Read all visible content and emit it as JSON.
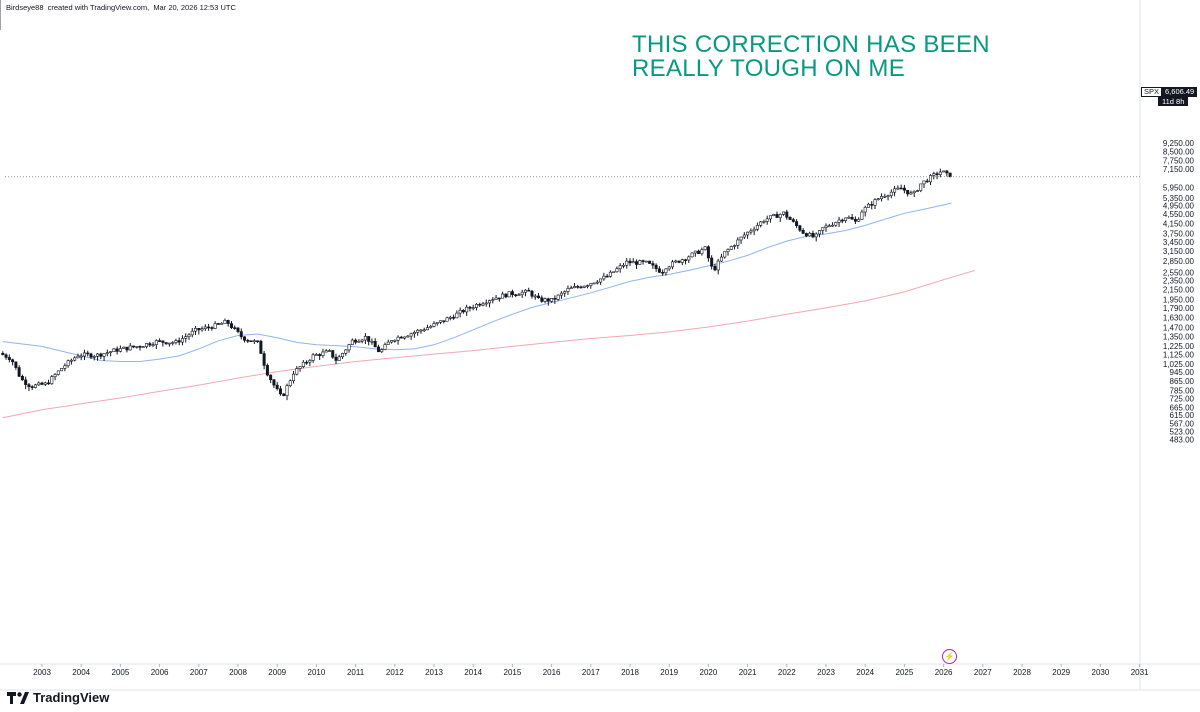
{
  "header": {
    "author": "Birdseye88",
    "created_with": "created with TradingView.com,",
    "timestamp": "Mar 20, 2026 12:53 UTC"
  },
  "annotation": {
    "line1": "THIS CORRECTION HAS BEEN",
    "line2": "REALLY TOUGH ON ME",
    "color": "#089981"
  },
  "price_tag": {
    "symbol": "SPX",
    "value": "6,606.49",
    "countdown": "11d 8h"
  },
  "footer": {
    "brand": "TradingView"
  },
  "colors": {
    "candle_up": "#ffffff",
    "candle_down": "#131722",
    "ma_fast": "#90b4f0",
    "ma_slow": "#f4a7b0",
    "grid": "#f0f3fa",
    "arrow": "#131722",
    "price_line": "#787b86"
  },
  "icons": {
    "footer_logo": "tradingview-logo-icon",
    "alert": "lightning-bolt-icon",
    "arrow": "down-arrow-icon"
  },
  "chart_data": {
    "type": "candlestick",
    "symbol": "SPX",
    "timeframe": "monthly",
    "y_scale": "log",
    "ylim": [
      460,
      9500
    ],
    "xlim": [
      2002.2,
      2031.6
    ],
    "grid": true,
    "y_ticks": [
      {
        "value": 9250,
        "label": "9,250.00"
      },
      {
        "value": 8500,
        "label": "8,500.00"
      },
      {
        "value": 7750,
        "label": "7,750.00"
      },
      {
        "value": 7150,
        "label": "7,150.00"
      },
      {
        "value": 5950,
        "label": "5,950.00"
      },
      {
        "value": 5350,
        "label": "5,350.00"
      },
      {
        "value": 4950,
        "label": "4,950.00"
      },
      {
        "value": 4550,
        "label": "4,550.00"
      },
      {
        "value": 4150,
        "label": "4,150.00"
      },
      {
        "value": 3750,
        "label": "3,750.00"
      },
      {
        "value": 3450,
        "label": "3,450.00"
      },
      {
        "value": 3150,
        "label": "3,150.00"
      },
      {
        "value": 2850,
        "label": "2,850.00"
      },
      {
        "value": 2550,
        "label": "2,550.00"
      },
      {
        "value": 2350,
        "label": "2,350.00"
      },
      {
        "value": 2150,
        "label": "2,150.00"
      },
      {
        "value": 1950,
        "label": "1,950.00"
      },
      {
        "value": 1790,
        "label": "1,790.00"
      },
      {
        "value": 1630,
        "label": "1,630.00"
      },
      {
        "value": 1470,
        "label": "1,470.00"
      },
      {
        "value": 1350,
        "label": "1,350.00"
      },
      {
        "value": 1225,
        "label": "1,225.00"
      },
      {
        "value": 1125,
        "label": "1,125.00"
      },
      {
        "value": 1025,
        "label": "1,025.00"
      },
      {
        "value": 945,
        "label": "945.00"
      },
      {
        "value": 865,
        "label": "865.00"
      },
      {
        "value": 785,
        "label": "785.00"
      },
      {
        "value": 725,
        "label": "725.00"
      },
      {
        "value": 665,
        "label": "665.00"
      },
      {
        "value": 615,
        "label": "615.00"
      },
      {
        "value": 567,
        "label": "567.00"
      },
      {
        "value": 523,
        "label": "523.00"
      },
      {
        "value": 483,
        "label": "483.00"
      }
    ],
    "x_ticks": [
      "2003",
      "2004",
      "2005",
      "2006",
      "2007",
      "2008",
      "2009",
      "2010",
      "2011",
      "2012",
      "2013",
      "2014",
      "2015",
      "2016",
      "2017",
      "2018",
      "2019",
      "2020",
      "2021",
      "2022",
      "2023",
      "2024",
      "2025",
      "2026",
      "2027",
      "2028",
      "2029",
      "2030",
      "2031"
    ],
    "last_price": 6606.49,
    "annotation_arrow_at": {
      "x": 2026.0,
      "y": 7500
    },
    "candles_anchor_path": [
      [
        2002.0,
        1140
      ],
      [
        2002.3,
        1080
      ],
      [
        2002.55,
        880
      ],
      [
        2002.8,
        820
      ],
      [
        2003.2,
        840
      ],
      [
        2003.6,
        990
      ],
      [
        2004.0,
        1120
      ],
      [
        2004.5,
        1120
      ],
      [
        2005.0,
        1180
      ],
      [
        2005.6,
        1230
      ],
      [
        2006.0,
        1280
      ],
      [
        2006.5,
        1270
      ],
      [
        2007.0,
        1430
      ],
      [
        2007.5,
        1500
      ],
      [
        2007.8,
        1560
      ],
      [
        2008.2,
        1330
      ],
      [
        2008.6,
        1260
      ],
      [
        2008.8,
        960
      ],
      [
        2009.0,
        830
      ],
      [
        2009.2,
        730
      ],
      [
        2009.5,
        940
      ],
      [
        2010.0,
        1110
      ],
      [
        2010.4,
        1160
      ],
      [
        2010.6,
        1060
      ],
      [
        2011.0,
        1290
      ],
      [
        2011.35,
        1340
      ],
      [
        2011.7,
        1150
      ],
      [
        2012.0,
        1310
      ],
      [
        2012.5,
        1390
      ],
      [
        2013.0,
        1490
      ],
      [
        2013.5,
        1630
      ],
      [
        2014.0,
        1800
      ],
      [
        2014.5,
        1950
      ],
      [
        2015.0,
        2060
      ],
      [
        2015.5,
        2100
      ],
      [
        2015.75,
        1940
      ],
      [
        2016.1,
        1930
      ],
      [
        2016.5,
        2150
      ],
      [
        2017.0,
        2270
      ],
      [
        2017.5,
        2450
      ],
      [
        2018.0,
        2820
      ],
      [
        2018.5,
        2800
      ],
      [
        2018.9,
        2560
      ],
      [
        2019.0,
        2700
      ],
      [
        2019.5,
        2950
      ],
      [
        2020.0,
        3230
      ],
      [
        2020.2,
        2580
      ],
      [
        2020.5,
        3100
      ],
      [
        2021.0,
        3700
      ],
      [
        2021.5,
        4300
      ],
      [
        2022.0,
        4600
      ],
      [
        2022.5,
        3800
      ],
      [
        2022.8,
        3600
      ],
      [
        2023.0,
        3950
      ],
      [
        2023.6,
        4450
      ],
      [
        2023.85,
        4200
      ],
      [
        2024.0,
        4700
      ],
      [
        2024.5,
        5450
      ],
      [
        2025.0,
        5900
      ],
      [
        2025.3,
        5500
      ],
      [
        2025.5,
        6150
      ],
      [
        2025.9,
        6800
      ],
      [
        2026.0,
        6950
      ],
      [
        2026.1,
        6880
      ],
      [
        2026.22,
        6606.49
      ]
    ],
    "series": [
      {
        "name": "",
        "type": "moving-average",
        "color": "#90b4f0",
        "points": [
          [
            2002.0,
            1280
          ],
          [
            2003.0,
            1220
          ],
          [
            2004.0,
            1110
          ],
          [
            2004.5,
            1060
          ],
          [
            2005.0,
            1050
          ],
          [
            2005.5,
            1050
          ],
          [
            2006.0,
            1075
          ],
          [
            2006.5,
            1110
          ],
          [
            2007.0,
            1190
          ],
          [
            2007.5,
            1290
          ],
          [
            2008.0,
            1360
          ],
          [
            2008.5,
            1380
          ],
          [
            2009.0,
            1330
          ],
          [
            2009.5,
            1270
          ],
          [
            2010.0,
            1240
          ],
          [
            2010.5,
            1230
          ],
          [
            2011.0,
            1215
          ],
          [
            2011.5,
            1190
          ],
          [
            2012.0,
            1180
          ],
          [
            2012.5,
            1190
          ],
          [
            2013.0,
            1240
          ],
          [
            2013.5,
            1330
          ],
          [
            2014.0,
            1440
          ],
          [
            2014.5,
            1560
          ],
          [
            2015.0,
            1680
          ],
          [
            2015.5,
            1800
          ],
          [
            2016.0,
            1890
          ],
          [
            2016.5,
            1980
          ],
          [
            2017.0,
            2080
          ],
          [
            2017.5,
            2200
          ],
          [
            2018.0,
            2330
          ],
          [
            2018.5,
            2430
          ],
          [
            2019.0,
            2500
          ],
          [
            2019.5,
            2600
          ],
          [
            2020.0,
            2720
          ],
          [
            2020.5,
            2850
          ],
          [
            2021.0,
            3020
          ],
          [
            2021.5,
            3260
          ],
          [
            2022.0,
            3480
          ],
          [
            2022.5,
            3650
          ],
          [
            2023.0,
            3740
          ],
          [
            2023.5,
            3870
          ],
          [
            2024.0,
            4070
          ],
          [
            2024.5,
            4330
          ],
          [
            2025.0,
            4590
          ],
          [
            2025.5,
            4780
          ],
          [
            2026.0,
            4990
          ],
          [
            2026.2,
            5080
          ]
        ]
      },
      {
        "name": "",
        "type": "moving-average",
        "color": "#f4a7b0",
        "points": [
          [
            2002.0,
            600
          ],
          [
            2003.0,
            650
          ],
          [
            2004.0,
            690
          ],
          [
            2005.0,
            730
          ],
          [
            2006.0,
            780
          ],
          [
            2007.0,
            830
          ],
          [
            2008.0,
            890
          ],
          [
            2009.0,
            950
          ],
          [
            2010.0,
            1000
          ],
          [
            2011.0,
            1050
          ],
          [
            2012.0,
            1090
          ],
          [
            2013.0,
            1130
          ],
          [
            2014.0,
            1170
          ],
          [
            2015.0,
            1220
          ],
          [
            2016.0,
            1270
          ],
          [
            2017.0,
            1320
          ],
          [
            2018.0,
            1360
          ],
          [
            2019.0,
            1410
          ],
          [
            2020.0,
            1480
          ],
          [
            2021.0,
            1570
          ],
          [
            2022.0,
            1680
          ],
          [
            2023.0,
            1790
          ],
          [
            2024.0,
            1920
          ],
          [
            2025.0,
            2100
          ],
          [
            2026.0,
            2370
          ],
          [
            2026.8,
            2600
          ]
        ]
      }
    ]
  }
}
